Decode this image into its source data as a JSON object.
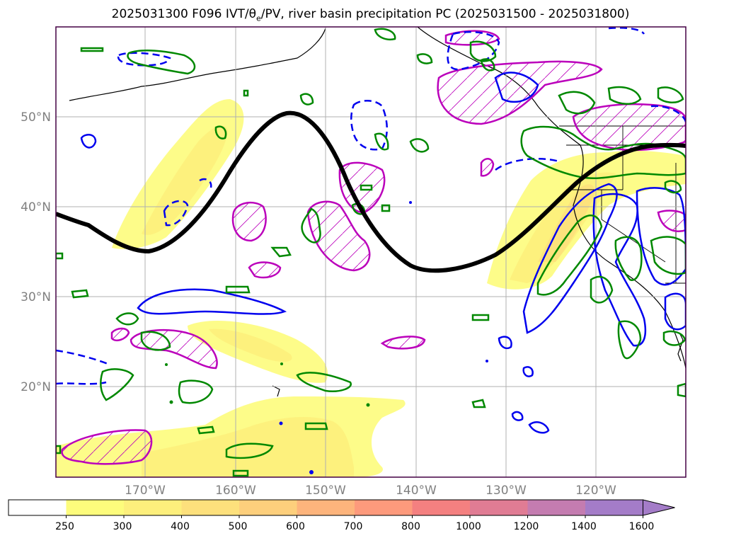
{
  "title": {
    "prefix": "2025031300 F096 IVT/θ",
    "sub": "e",
    "suffix": "/PV, river basin precipitation PC (2025031500 - 2025031800)"
  },
  "map": {
    "lat_labels": [
      "50°N",
      "40°N",
      "30°N",
      "20°N"
    ],
    "lon_labels": [
      "170°W",
      "160°W",
      "150°W",
      "140°W",
      "130°W",
      "120°W"
    ]
  },
  "colorbar": {
    "ticks": [
      "250",
      "300",
      "400",
      "500",
      "600",
      "700",
      "800",
      "1000",
      "1200",
      "1400",
      "1600"
    ],
    "colors": [
      "#ffffff",
      "#fdfc7c",
      "#fdef7c",
      "#fde07c",
      "#fdcf7c",
      "#fdb47c",
      "#fd9a7c",
      "#f48080",
      "#e07c94",
      "#c47cb0",
      "#a47cc8"
    ]
  }
}
